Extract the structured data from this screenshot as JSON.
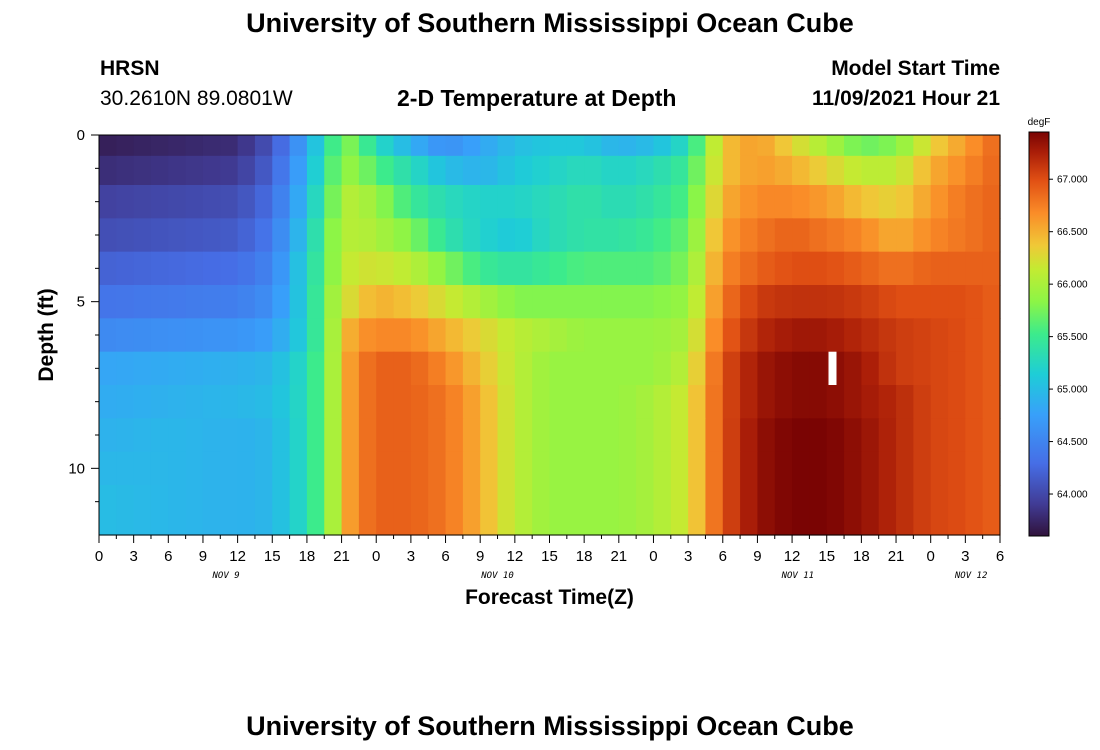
{
  "header": {
    "title": "University of Southern Mississippi Ocean Cube",
    "station": "HRSN",
    "location": "30.2610N  89.0801W",
    "subtitle": "2-D Temperature at Depth",
    "model_start_label": "Model Start Time",
    "model_start_value": "11/09/2021 Hour 21"
  },
  "footer": {
    "title": "University of Southern Mississippi Ocean Cube"
  },
  "chart_data": {
    "type": "heatmap",
    "title": "2-D Temperature at Depth",
    "xlabel": "Forecast Time(Z)",
    "ylabel": "Depth (ft)",
    "x_range_hours": [
      0,
      78
    ],
    "x_step_hours": 1.5,
    "x_tick_labels": [
      "0",
      "3",
      "6",
      "9",
      "12",
      "15",
      "18",
      "21",
      "0",
      "3",
      "6",
      "9",
      "12",
      "15",
      "18",
      "21",
      "0",
      "3",
      "6",
      "9",
      "12",
      "15",
      "18",
      "21",
      "0",
      "3",
      "6"
    ],
    "x_date_labels": [
      {
        "label": "NOV 9",
        "hour": 11
      },
      {
        "label": "NOV 10",
        "hour": 34.5
      },
      {
        "label": "NOV 11",
        "hour": 60.5
      },
      {
        "label": "NOV 12",
        "hour": 75.5
      }
    ],
    "y_range_ft": [
      0,
      12
    ],
    "y_tick_labels": [
      {
        "label": "0",
        "value": 0
      },
      {
        "label": "5",
        "value": 5
      },
      {
        "label": "10",
        "value": 10
      }
    ],
    "depth_layers_ft": [
      0.25,
      1.0,
      2.0,
      3.0,
      4.0,
      5.0,
      6.0,
      7.0,
      8.0,
      9.0,
      10.0,
      11.0
    ],
    "colorbar": {
      "unit": "degF",
      "min": 63.6,
      "max": 67.45,
      "ticks": [
        "64.000",
        "64.500",
        "65.000",
        "65.500",
        "66.000",
        "66.500",
        "67.000"
      ],
      "tick_values": [
        64.0,
        64.5,
        65.0,
        65.5,
        66.0,
        66.5,
        67.0
      ]
    },
    "keyframe_hours": [
      0,
      6,
      12,
      15,
      18,
      20,
      22,
      24,
      27,
      30,
      33,
      36,
      39,
      42,
      45,
      48,
      51,
      54,
      57,
      60,
      63,
      66,
      69,
      72,
      75,
      78
    ],
    "layer_keyframes_degF": [
      [
        63.7,
        63.75,
        63.8,
        64.1,
        64.8,
        65.5,
        65.8,
        65.3,
        64.9,
        64.6,
        64.8,
        65.0,
        65.1,
        65.1,
        64.9,
        65.0,
        65.3,
        66.4,
        66.6,
        66.3,
        66.0,
        65.7,
        65.8,
        66.3,
        66.6,
        66.9
      ],
      [
        63.8,
        63.85,
        63.9,
        64.2,
        64.9,
        65.6,
        65.9,
        65.6,
        65.3,
        65.0,
        64.9,
        65.1,
        65.2,
        65.3,
        65.2,
        65.3,
        65.5,
        66.4,
        66.6,
        66.5,
        66.3,
        66.1,
        66.1,
        66.5,
        66.7,
        66.9
      ],
      [
        63.95,
        64.0,
        64.05,
        64.3,
        65.0,
        65.7,
        66.1,
        65.9,
        65.5,
        65.3,
        65.2,
        65.2,
        65.3,
        65.4,
        65.3,
        65.4,
        65.6,
        66.5,
        66.7,
        66.7,
        66.6,
        66.4,
        66.3,
        66.6,
        66.8,
        66.9
      ],
      [
        64.05,
        64.1,
        64.15,
        64.4,
        65.1,
        65.8,
        66.1,
        66.0,
        65.8,
        65.4,
        65.2,
        65.1,
        65.3,
        65.4,
        65.4,
        65.5,
        65.7,
        66.6,
        66.8,
        66.9,
        66.8,
        66.7,
        66.5,
        66.7,
        66.8,
        66.9
      ],
      [
        64.2,
        64.25,
        64.3,
        64.5,
        65.2,
        65.8,
        66.2,
        66.2,
        66.1,
        65.8,
        65.5,
        65.4,
        65.5,
        65.6,
        65.6,
        65.6,
        65.8,
        66.7,
        66.9,
        67.0,
        67.0,
        66.9,
        66.8,
        66.9,
        66.9,
        66.9
      ],
      [
        64.35,
        64.4,
        64.45,
        64.6,
        65.2,
        65.9,
        66.3,
        66.5,
        66.4,
        66.2,
        66.0,
        65.8,
        65.8,
        65.8,
        65.8,
        65.8,
        65.9,
        66.8,
        67.1,
        67.15,
        67.15,
        67.1,
        67.0,
        67.0,
        67.0,
        66.9
      ],
      [
        64.55,
        64.6,
        64.65,
        64.75,
        65.2,
        65.9,
        66.6,
        66.7,
        66.7,
        66.5,
        66.3,
        66.1,
        66.0,
        65.9,
        65.9,
        65.9,
        66.0,
        66.9,
        67.2,
        67.3,
        67.3,
        67.2,
        67.1,
        67.05,
        67.0,
        66.9
      ],
      [
        64.8,
        64.85,
        64.9,
        64.95,
        65.3,
        65.9,
        66.7,
        66.9,
        66.9,
        66.7,
        66.4,
        66.1,
        65.9,
        65.9,
        65.9,
        65.9,
        66.1,
        67.0,
        67.3,
        67.4,
        67.4,
        67.3,
        67.1,
        67.05,
        67.0,
        66.9
      ],
      [
        64.85,
        64.9,
        64.95,
        65.0,
        65.3,
        65.9,
        66.7,
        66.9,
        66.9,
        66.8,
        66.5,
        66.1,
        65.9,
        65.9,
        65.9,
        66.0,
        66.2,
        67.0,
        67.3,
        67.4,
        67.4,
        67.3,
        67.2,
        67.05,
        67.0,
        66.9
      ],
      [
        64.9,
        64.95,
        64.9,
        64.95,
        65.3,
        65.9,
        66.7,
        66.9,
        66.9,
        66.8,
        66.5,
        66.1,
        65.9,
        65.9,
        65.9,
        66.0,
        66.2,
        67.0,
        67.35,
        67.45,
        67.45,
        67.35,
        67.2,
        67.05,
        67.0,
        66.9
      ],
      [
        64.95,
        64.95,
        64.9,
        64.95,
        65.3,
        65.9,
        66.7,
        66.9,
        66.9,
        66.8,
        66.5,
        66.1,
        65.9,
        65.9,
        65.9,
        66.0,
        66.2,
        67.0,
        67.35,
        67.45,
        67.45,
        67.35,
        67.2,
        67.05,
        67.0,
        66.9
      ],
      [
        65.0,
        64.95,
        64.9,
        64.95,
        65.3,
        65.9,
        66.7,
        66.9,
        66.9,
        66.8,
        66.5,
        66.1,
        65.9,
        65.9,
        65.9,
        66.0,
        66.2,
        67.0,
        67.35,
        67.45,
        67.45,
        67.35,
        67.2,
        67.05,
        67.0,
        66.9
      ]
    ],
    "marker": {
      "hour": 63.5,
      "depth_from_ft": 6.5,
      "depth_to_ft": 7.5
    }
  }
}
